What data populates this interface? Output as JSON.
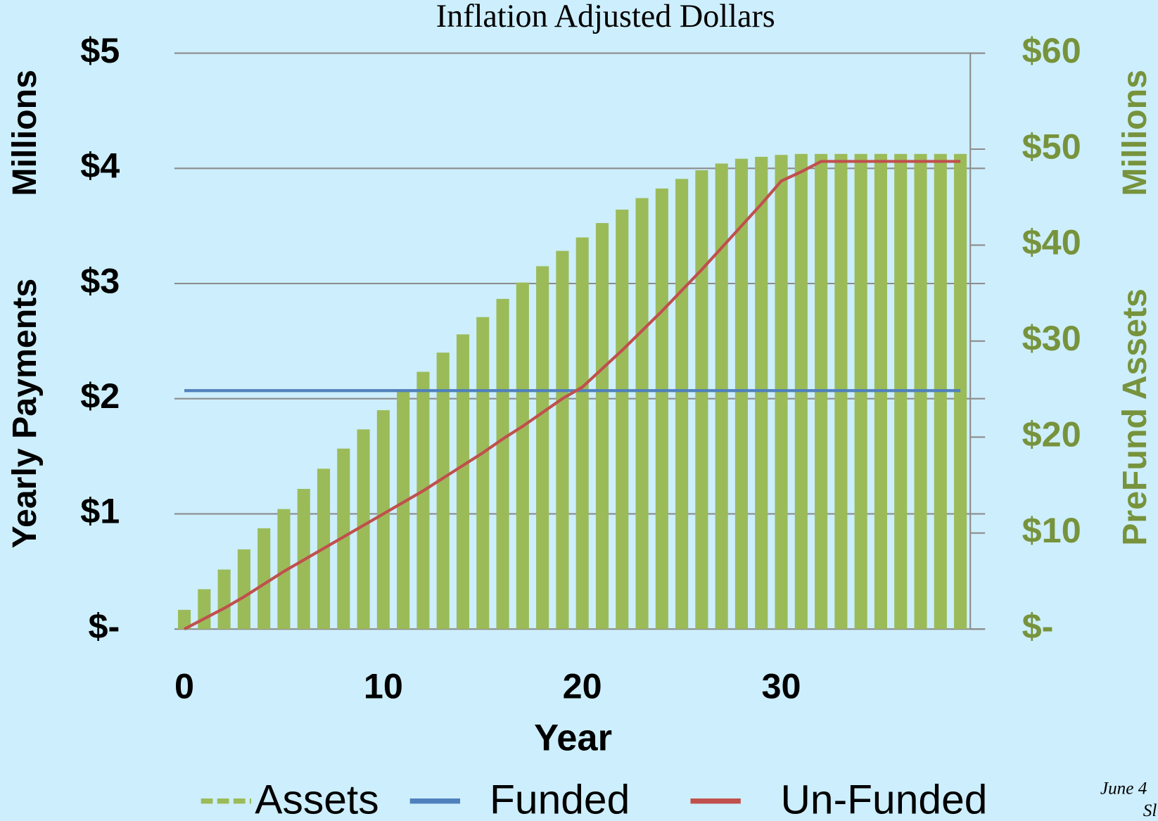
{
  "chart_data": {
    "type": "bar_line",
    "title": "Inflation Adjusted Dollars",
    "xlabel": "Year",
    "ylabel": [
      "Yearly Payments",
      "Millions"
    ],
    "y2label": [
      "PreFund Assets",
      "Millions"
    ],
    "annotations": [
      "June 4",
      "Sl"
    ],
    "legend": "bottom",
    "grid": true,
    "categories": [
      "0",
      null,
      null,
      null,
      null,
      null,
      null,
      null,
      null,
      null,
      "10",
      null,
      null,
      null,
      null,
      null,
      null,
      null,
      null,
      null,
      "20",
      null,
      null,
      null,
      null,
      null,
      null,
      null,
      null,
      null,
      "30",
      null,
      null,
      null,
      null,
      null,
      null,
      null,
      null,
      null
    ],
    "ylim": [
      0,
      5
    ],
    "yticks": [
      {
        "value": 0,
        "label": "$-"
      },
      {
        "value": 1,
        "label": "$1"
      },
      {
        "value": 2,
        "label": "$2"
      },
      {
        "value": 3,
        "label": "$3"
      },
      {
        "value": 4,
        "label": "$4"
      },
      {
        "value": 5,
        "label": "$5"
      }
    ],
    "y2lim": [
      0,
      60
    ],
    "y2ticks": [
      {
        "value": 0,
        "label": "$-"
      },
      {
        "value": 10,
        "label": "$10"
      },
      {
        "value": 20,
        "label": "$20"
      },
      {
        "value": 30,
        "label": "$30"
      },
      {
        "value": 40,
        "label": "$40"
      },
      {
        "value": 50,
        "label": "$50"
      },
      {
        "value": 60,
        "label": "$60"
      }
    ],
    "series": [
      {
        "name": "Assets",
        "type": "bar",
        "axis": "y2",
        "color": "#9bbb59",
        "values": [
          2.0,
          4.15,
          6.2,
          8.3,
          10.5,
          12.5,
          14.6,
          16.7,
          18.8,
          20.8,
          22.8,
          24.8,
          26.8,
          28.8,
          30.7,
          32.5,
          34.4,
          36.1,
          37.8,
          39.4,
          40.8,
          42.3,
          43.7,
          44.9,
          45.9,
          46.9,
          47.8,
          48.5,
          49.0,
          49.2,
          49.4,
          49.5,
          49.5,
          49.5,
          49.5,
          49.5,
          49.5,
          49.5,
          49.5,
          49.5
        ]
      },
      {
        "name": "Funded",
        "type": "line",
        "color": "#4f81bd",
        "values": [
          2.07,
          2.07,
          2.07,
          2.07,
          2.07,
          2.07,
          2.07,
          2.07,
          2.07,
          2.07,
          2.07,
          2.07,
          2.07,
          2.07,
          2.07,
          2.07,
          2.07,
          2.07,
          2.07,
          2.07,
          2.07,
          2.07,
          2.07,
          2.07,
          2.07,
          2.07,
          2.07,
          2.07,
          2.07,
          2.07,
          2.07,
          2.07,
          2.07,
          2.07,
          2.07,
          2.07,
          2.07,
          2.07,
          2.07,
          2.07
        ]
      },
      {
        "name": "Un-Funded",
        "type": "line",
        "color": "#c0504d",
        "values": [
          0,
          0.09,
          0.18,
          0.28,
          0.39,
          0.5,
          0.6,
          0.7,
          0.8,
          0.9,
          1.0,
          1.1,
          1.2,
          1.31,
          1.42,
          1.53,
          1.65,
          1.76,
          1.88,
          2.0,
          2.1,
          2.26,
          2.42,
          2.59,
          2.76,
          2.94,
          3.12,
          3.31,
          3.5,
          3.69,
          3.89,
          3.97,
          4.06,
          4.06,
          4.06,
          4.06,
          4.06,
          4.06,
          4.06,
          4.06
        ]
      }
    ]
  }
}
